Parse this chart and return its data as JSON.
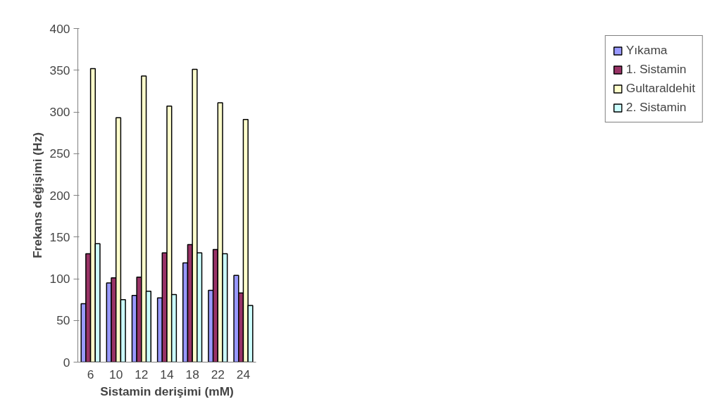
{
  "chart_data": {
    "type": "bar",
    "xlabel": "Sistamin derişimi (mM)",
    "ylabel": "Frekans değişimi (Hz)",
    "categories": [
      "6",
      "10",
      "12",
      "14",
      "18",
      "22",
      "24"
    ],
    "series": [
      {
        "name": "Yıkama",
        "color": "#9999ff",
        "values": [
          70,
          95,
          80,
          77,
          119,
          86,
          104
        ]
      },
      {
        "name": "1. Sistamin",
        "color": "#993366",
        "values": [
          130,
          101,
          102,
          131,
          141,
          135,
          83
        ]
      },
      {
        "name": "Gultaraldehit",
        "color": "#ffffcc",
        "values": [
          352,
          293,
          343,
          307,
          351,
          311,
          291
        ]
      },
      {
        "name": "2. Sistamin",
        "color": "#ccffff",
        "values": [
          142,
          75,
          85,
          81,
          131,
          130,
          68
        ]
      }
    ],
    "ylim": [
      0,
      400
    ],
    "yticks": [
      0,
      50,
      100,
      150,
      200,
      250,
      300,
      350,
      400
    ],
    "grid": false,
    "legend": "right"
  }
}
